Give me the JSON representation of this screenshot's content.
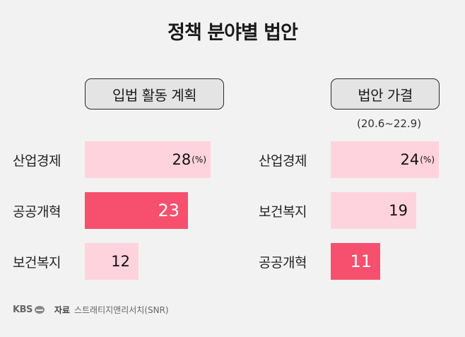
{
  "title": "정책 분야별 법안",
  "colors": {
    "light": "#ffd3de",
    "highlight": "#f7506e",
    "background": "#f2f2f2"
  },
  "chart_data": [
    {
      "type": "bar",
      "orientation": "horizontal",
      "title": "입법 활동 계획",
      "unit": "(%)",
      "categories": [
        "산업경제",
        "공공개혁",
        "보건복지"
      ],
      "values": [
        28,
        23,
        12
      ],
      "highlight_index": 1,
      "xlim": [
        0,
        28
      ]
    },
    {
      "type": "bar",
      "orientation": "horizontal",
      "title": "법안 가결",
      "subtitle": "(20.6~22.9)",
      "unit": "(%)",
      "categories": [
        "산업경제",
        "보건복지",
        "공공개혁"
      ],
      "values": [
        24,
        19,
        11
      ],
      "highlight_index": 2,
      "xlim": [
        0,
        24
      ]
    }
  ],
  "footer": {
    "logo": "KBS",
    "source_label": "자료",
    "source": "스트래티지앤리서치(SNR)"
  }
}
